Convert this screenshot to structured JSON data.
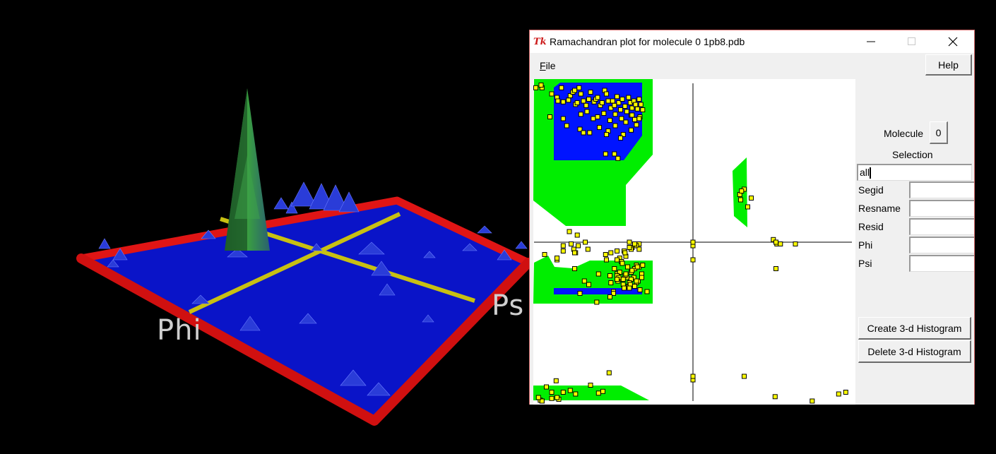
{
  "scene": {
    "axis_label_phi": "Phi",
    "axis_label_psi": "Ps",
    "colors": {
      "floor": "#0a14c8",
      "border": "#d41010",
      "axes": "#c8c012",
      "peak": "#2e8b3a"
    }
  },
  "window": {
    "title": "Ramachandran plot for molecule 0 1pb8.pdb",
    "menu": {
      "file_label_underlined": "F",
      "file_label_rest": "ile",
      "help_label": "Help"
    }
  },
  "sidebar": {
    "molecule_label": "Molecule",
    "molecule_value": "0",
    "selection_label": "Selection",
    "selection_value": "all",
    "fields": [
      {
        "label": "Segid",
        "value": ""
      },
      {
        "label": "Resname",
        "value": ""
      },
      {
        "label": "Resid",
        "value": ""
      },
      {
        "label": "Phi",
        "value": ""
      },
      {
        "label": "Psi",
        "value": ""
      }
    ],
    "create_button": "Create 3-d Histogram",
    "delete_button": "Delete 3-d Histogram"
  },
  "chart_data": {
    "type": "scatter",
    "title": "",
    "xlabel": "",
    "ylabel": "",
    "xlim": [
      -180,
      180
    ],
    "ylim": [
      -180,
      180
    ],
    "regions": {
      "favored_color": "#0014ff",
      "allowed_color": "#00ee00"
    },
    "point_color": "#ffff00",
    "series": [
      {
        "x": [
          -171,
          -160,
          -154,
          -153,
          -149,
          -147,
          -141,
          -139,
          -136,
          -134,
          -133,
          -131,
          -129,
          -127,
          -124,
          -121,
          -118,
          -116,
          -112,
          -110,
          -108,
          -105,
          -103,
          -100,
          -98,
          -96,
          -93,
          -91,
          -89,
          -86,
          -84,
          -82,
          -80,
          -77,
          -75,
          -73,
          -71,
          -69,
          -67,
          -65,
          -63,
          -61,
          -59,
          -57,
          -127,
          -120,
          -113,
          -108,
          -101,
          -94,
          -88,
          -81,
          -76,
          -70,
          -66,
          -60,
          -143,
          -128,
          -117,
          -106,
          -96,
          -88,
          -79,
          -70,
          -64,
          -162,
          -147,
          -124,
          -98,
          -82,
          -69,
          -61,
          -89,
          -99,
          -85,
          -78,
          -69,
          -61,
          -72,
          -119,
          -133,
          -83,
          -99,
          -86,
          -81,
          -76,
          -70,
          -64,
          -86,
          -77,
          -72,
          -66,
          -61,
          -80,
          -74,
          -69,
          -64,
          -94,
          -86,
          -80,
          -75,
          -70,
          -66,
          -61,
          -93,
          -85,
          -79,
          -73,
          -67,
          -62,
          -89,
          -83,
          -77,
          -70,
          -64,
          -58,
          -86,
          -79,
          -72,
          -66,
          -60,
          -84,
          -76,
          -69,
          -63,
          -57,
          -78,
          -71,
          -64,
          -58,
          -52,
          -172,
          -147,
          -138,
          -135,
          -134,
          -130,
          -122,
          -131,
          -140,
          -178,
          -147,
          -139,
          -160,
          -95,
          -116,
          -107,
          -93,
          -98,
          -86,
          -90,
          -128,
          -107,
          -72,
          -90,
          -94,
          -109,
          -123,
          -134,
          -154,
          -168,
          -154,
          -118,
          54,
          58,
          53,
          55,
          62,
          66,
          95,
          91,
          94,
          99,
          116,
          94,
          135,
          0,
          0,
          0,
          0,
          -171,
          -160,
          -152,
          -147,
          -133,
          -102,
          -155,
          -166,
          -154,
          -173,
          -171,
          58,
          93,
          165,
          173,
          -175,
          0
        ],
        "y": [
          175,
          168,
          164,
          160,
          175,
          159,
          161,
          166,
          170,
          172,
          156,
          158,
          175,
          168,
          160,
          155,
          162,
          170,
          159,
          162,
          164,
          155,
          158,
          172,
          168,
          160,
          152,
          160,
          155,
          165,
          158,
          150,
          162,
          154,
          148,
          164,
          158,
          152,
          160,
          156,
          151,
          162,
          156,
          150,
          145,
          148,
          140,
          142,
          146,
          138,
          145,
          140,
          136,
          144,
          139,
          142,
          132,
          128,
          124,
          130,
          126,
          132,
          122,
          127,
          133,
          142,
          140,
          124,
          122,
          118,
          144,
          140,
          100,
          100,
          95,
          -10,
          -6,
          -2,
          0,
          -8,
          -12,
          -18,
          -14,
          -20,
          -22,
          -16,
          -8,
          -4,
          -10,
          -12,
          -6,
          -2,
          -8,
          -24,
          -28,
          -32,
          -26,
          -38,
          -36,
          -42,
          -40,
          -34,
          -30,
          -28,
          -46,
          -44,
          -48,
          -50,
          -40,
          -44,
          -30,
          -34,
          -38,
          -42,
          -46,
          -36,
          -38,
          -42,
          -46,
          -50,
          -54,
          -40,
          -36,
          -32,
          -28,
          -26,
          -52,
          -48,
          -44,
          -40,
          -56,
          178,
          -4,
          -2,
          -8,
          -12,
          -4,
          0,
          8,
          12,
          175,
          -10,
          -168,
          -170,
          -148,
          -162,
          -171,
          -12,
          -20,
          -42,
          -56,
          -58,
          -36,
          -52,
          -58,
          -62,
          -68,
          -44,
          -30,
          -20,
          -14,
          -18,
          -48,
          48,
          60,
          54,
          58,
          40,
          50,
          -2,
          3,
          0,
          -2,
          -2,
          -30,
          -180,
          -4,
          -20,
          -156,
          -152,
          -180,
          -177,
          -178,
          -170,
          -172,
          -169,
          -157,
          -164,
          -176,
          -179,
          -180,
          -152,
          -175,
          -172,
          -170,
          -176,
          0
        ]
      }
    ]
  }
}
